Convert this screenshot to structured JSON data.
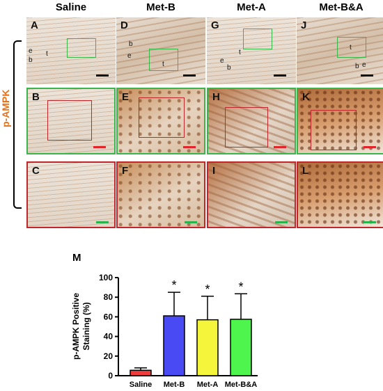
{
  "columns": [
    "Saline",
    "Met-B",
    "Met-A",
    "Met-B&A"
  ],
  "side_label": "p-AMPK",
  "panel_labels": {
    "row1": [
      "A",
      "D",
      "G",
      "J"
    ],
    "row2": [
      "B",
      "E",
      "H",
      "K"
    ],
    "row3": [
      "C",
      "F",
      "I",
      "L"
    ]
  },
  "tissue_labels": {
    "e": "e",
    "b": "b",
    "t": "t"
  },
  "chart_label": "M",
  "chart_data": {
    "type": "bar",
    "categories": [
      "Saline",
      "Met-B",
      "Met-A",
      "Met-B&A"
    ],
    "values": [
      5.5,
      61,
      57,
      57.5
    ],
    "errors": [
      2.5,
      24,
      24,
      26
    ],
    "significance": [
      "",
      "*",
      "*",
      "*"
    ],
    "colors": [
      "#f03c3c",
      "#4a4af5",
      "#f5f53c",
      "#4df54d"
    ],
    "ylabel": "p-AMPK Positive Staining (%)",
    "ylim": [
      0,
      100
    ],
    "yticks": [
      0,
      20,
      40,
      60,
      80,
      100
    ]
  }
}
